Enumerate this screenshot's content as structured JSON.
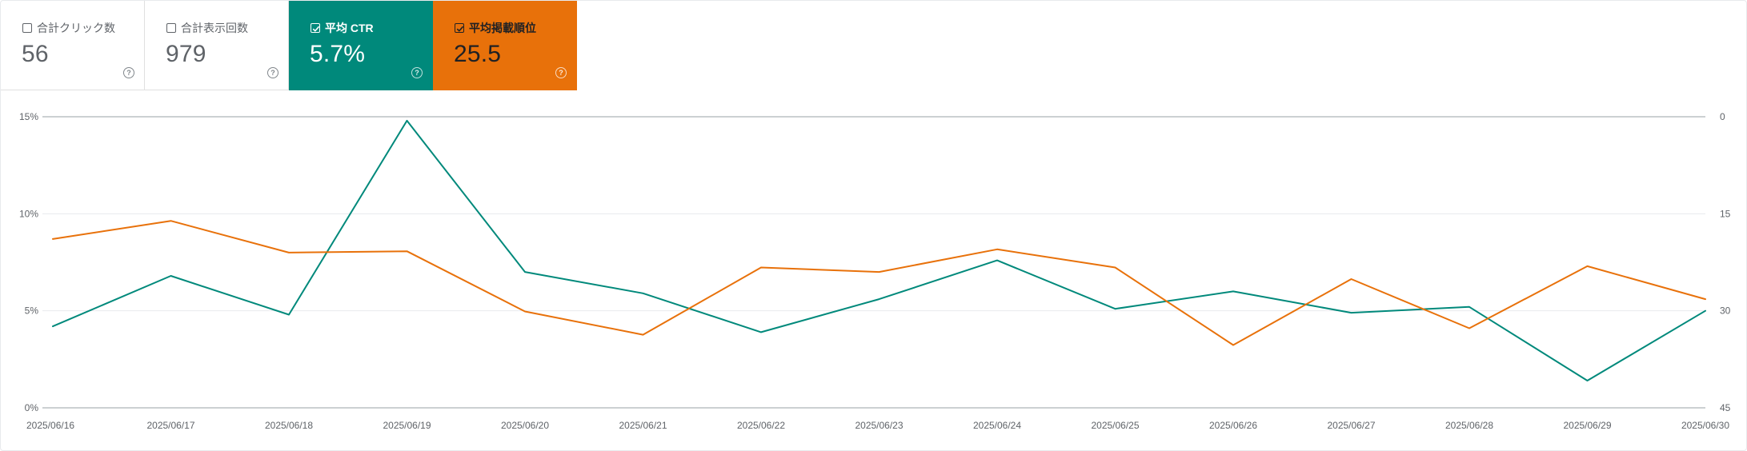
{
  "cards": [
    {
      "label": "合計クリック数",
      "value": "56",
      "checked": false
    },
    {
      "label": "合計表示回数",
      "value": "979",
      "checked": false
    },
    {
      "label": "平均 CTR",
      "value": "5.7%",
      "checked": true
    },
    {
      "label": "平均掲載順位",
      "value": "25.5",
      "checked": true
    }
  ],
  "help_glyph": "?",
  "colors": {
    "ctr": "#00897b",
    "position": "#e8710a",
    "grid": "#e8eaed",
    "baseline": "#9aa0a6",
    "text": "#5f6368"
  },
  "chart_data": {
    "type": "line",
    "title": "",
    "xlabel": "",
    "ylabel": "",
    "x": [
      "2025/06/16",
      "2025/06/17",
      "2025/06/18",
      "2025/06/19",
      "2025/06/20",
      "2025/06/21",
      "2025/06/22",
      "2025/06/23",
      "2025/06/24",
      "2025/06/25",
      "2025/06/26",
      "2025/06/27",
      "2025/06/28",
      "2025/06/29",
      "2025/06/30"
    ],
    "left_axis": {
      "ticks": [
        "0%",
        "5%",
        "10%",
        "15%"
      ],
      "tick_values": [
        0,
        5,
        10,
        15
      ],
      "range": [
        0,
        15
      ]
    },
    "right_axis": {
      "ticks": [
        "0",
        "15",
        "30",
        "45"
      ],
      "tick_values": [
        0,
        15,
        30,
        45
      ],
      "range": [
        0,
        45
      ],
      "inverted": true
    },
    "grid": true,
    "series": [
      {
        "axis": "left",
        "color": "#00897b",
        "values": [
          4.2,
          6.8,
          4.8,
          14.8,
          7.0,
          5.9,
          3.9,
          5.6,
          7.6,
          5.1,
          6.0,
          4.9,
          5.2,
          1.4,
          5.0
        ]
      },
      {
        "axis": "right",
        "color": "#e8710a",
        "values": [
          18.9,
          16.1,
          21.0,
          20.8,
          30.1,
          33.7,
          23.3,
          24.0,
          20.5,
          23.3,
          35.3,
          25.1,
          32.7,
          23.1,
          28.2
        ]
      }
    ]
  }
}
